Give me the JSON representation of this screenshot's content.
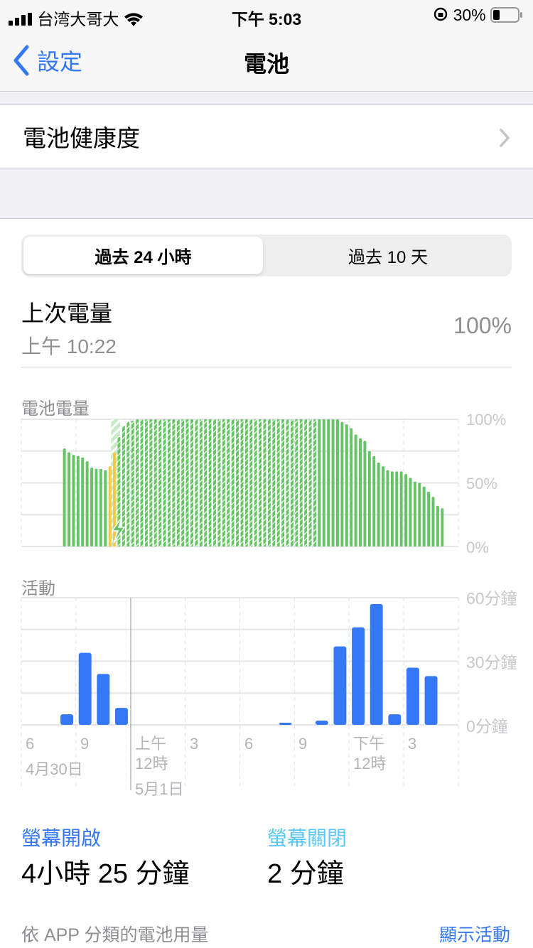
{
  "status_bar": {
    "carrier": "台湾大哥大",
    "time": "下午 5:03",
    "battery": "30%",
    "battery_level": 0.3
  },
  "nav": {
    "back_label": "設定",
    "title": "電池"
  },
  "battery_health": {
    "label": "電池健康度"
  },
  "segments": [
    {
      "label": "過去 24 小時",
      "selected": true
    },
    {
      "label": "過去 10 天",
      "selected": false
    }
  ],
  "last_charge": {
    "title": "上次電量",
    "time": "上午 10:22",
    "level": "100%"
  },
  "colors": {
    "accent": "#3478f6",
    "battery_green": "#65c466",
    "low_power_yellow": "#f7c843",
    "screen_off": "#5ac8fa",
    "activity_blue": "#3478f6"
  },
  "chart_data": [
    {
      "type": "bar",
      "title": "電池電量",
      "interval": "15 minutes",
      "y_unit": "%",
      "ylim": [
        0,
        100
      ],
      "y_ticks": [
        "100%",
        "50%",
        "0%"
      ],
      "values": [
        null,
        null,
        null,
        null,
        null,
        null,
        null,
        null,
        null,
        77,
        74,
        72,
        71,
        70,
        67,
        62,
        61,
        61,
        60,
        63,
        74,
        86,
        95,
        98,
        99,
        100,
        100,
        100,
        100,
        100,
        100,
        100,
        100,
        100,
        100,
        100,
        100,
        100,
        100,
        100,
        100,
        100,
        100,
        100,
        100,
        100,
        100,
        100,
        100,
        100,
        100,
        100,
        100,
        100,
        100,
        100,
        100,
        100,
        100,
        100,
        100,
        100,
        100,
        100,
        100,
        100,
        100,
        100,
        100,
        100,
        98,
        96,
        93,
        88,
        85,
        83,
        75,
        71,
        66,
        63,
        60,
        59,
        59,
        59,
        57,
        54,
        51,
        50,
        47,
        43,
        39,
        32,
        30,
        null,
        null,
        null
      ],
      "low_power_slots": [
        19,
        20
      ],
      "charging_slots": [
        20,
        64
      ]
    },
    {
      "type": "bar",
      "title": "活動",
      "interval": "1 hour",
      "ylim": [
        0,
        60
      ],
      "y_ticks": [
        "60分鐘",
        "30分鐘",
        "0分鐘"
      ],
      "x_ticks": [
        {
          "line1": "6",
          "line2": "4月30日"
        },
        {
          "line1": "9"
        },
        {
          "line1": "上午",
          "line2": "12時",
          "line3": "5月1日"
        },
        {
          "line1": "3"
        },
        {
          "line1": "6"
        },
        {
          "line1": "9"
        },
        {
          "line1": "下午",
          "line2": "12時"
        },
        {
          "line1": "3"
        }
      ],
      "values": [
        0,
        0,
        5,
        34,
        24,
        8,
        0,
        0,
        0,
        0,
        0,
        0,
        0,
        0,
        1,
        0,
        2,
        37,
        46,
        57,
        5,
        27,
        23,
        0
      ]
    }
  ],
  "screen_on": {
    "label": "螢幕開啟",
    "value": "4小時 25 分鐘"
  },
  "screen_off": {
    "label": "螢幕關閉",
    "value": "2 分鐘"
  },
  "footer": {
    "label": "依 APP 分類的電池用量",
    "action": "顯示活動"
  }
}
